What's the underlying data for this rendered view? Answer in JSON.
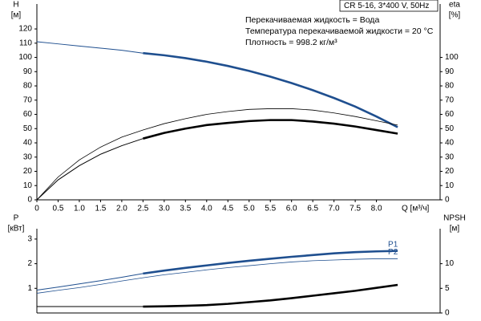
{
  "chart_data": [
    {
      "type": "line",
      "ylabel": "H",
      "yunit": "[м]",
      "y2label": "eta",
      "y2unit": "[%]",
      "xlabel": "Q [м³/ч]",
      "info_box": "CR 5-16, 3*400 V, 50Hz",
      "annotations": [
        "Перекачиваемая жидкость = Вода",
        "Температура перекачиваемой жидкости = 20 °C",
        "Плотность = 998.2 кг/м³"
      ],
      "bold_from": 2.5,
      "x": [
        0,
        0.5,
        1,
        1.5,
        2,
        2.5,
        3,
        3.5,
        4,
        4.5,
        5,
        5.5,
        6,
        6.5,
        7,
        7.5,
        8,
        8.5
      ],
      "xlim": [
        0,
        9.5
      ],
      "xticks": [
        0,
        0.5,
        {
          "value": 1,
          "label": "1.0"
        },
        1.5,
        {
          "value": 2,
          "label": "2.0"
        },
        2.5,
        {
          "value": 3,
          "label": "3.0"
        },
        3.5,
        {
          "value": 4,
          "label": "4.0"
        },
        4.5,
        {
          "value": 5,
          "label": "5.0"
        },
        5.5,
        {
          "value": 6,
          "label": "6.0"
        },
        6.5,
        {
          "value": 7,
          "label": "7.0"
        },
        7.5,
        {
          "value": 8,
          "label": "8.0"
        }
      ],
      "ylim": [
        0,
        137.5
      ],
      "yticks": [
        0,
        10,
        20,
        30,
        40,
        50,
        60,
        70,
        80,
        90,
        100,
        110,
        120
      ],
      "y2lim": [
        0,
        137.5
      ],
      "y2ticks": [
        0,
        10,
        20,
        30,
        40,
        50,
        60,
        70,
        80,
        90,
        100
      ],
      "series": [
        {
          "color": "#1f4f8f",
          "bold": true,
          "values": [
            111,
            109.5,
            108,
            106.5,
            105,
            103,
            101.5,
            99.5,
            97,
            94,
            90.5,
            86.5,
            82,
            77,
            71.5,
            65.5,
            58.5,
            51
          ]
        },
        {
          "color": "#000000",
          "bold": false,
          "axis": "y2",
          "values": [
            0,
            16,
            28,
            37,
            44,
            49,
            53.5,
            57,
            60,
            62,
            63.5,
            64,
            64,
            63,
            61,
            58.5,
            55.5,
            52.5
          ]
        },
        {
          "color": "#000000",
          "bold": true,
          "axis": "y2",
          "values": [
            0,
            14,
            24,
            32,
            38,
            43,
            47,
            50,
            52.5,
            54,
            55.3,
            56,
            56,
            55,
            53.5,
            51.5,
            49,
            46.5
          ]
        }
      ]
    },
    {
      "type": "line",
      "ylabel": "P",
      "yunit": "[кВт]",
      "y2label": "NPSH",
      "y2unit": "[м]",
      "bold_from": 2.5,
      "x": [
        0,
        0.5,
        1,
        1.5,
        2,
        2.5,
        3,
        3.5,
        4,
        4.5,
        5,
        5.5,
        6,
        6.5,
        7,
        7.5,
        8,
        8.5
      ],
      "xlim": [
        0,
        9.5
      ],
      "ylim": [
        0,
        3.42
      ],
      "yticks": [
        1,
        2,
        3
      ],
      "y2lim": [
        0,
        17.1
      ],
      "y2ticks": [
        0,
        5,
        10
      ],
      "series": [
        {
          "name": "P1",
          "color": "#1f4f8f",
          "bold": true,
          "values": [
            0.93,
            1.05,
            1.18,
            1.31,
            1.45,
            1.6,
            1.72,
            1.83,
            1.93,
            2.03,
            2.12,
            2.2,
            2.28,
            2.35,
            2.42,
            2.47,
            2.5,
            2.52
          ]
        },
        {
          "name": "P2",
          "color": "#1f4f8f",
          "bold": false,
          "values": [
            0.8,
            0.92,
            1.03,
            1.16,
            1.3,
            1.43,
            1.55,
            1.65,
            1.75,
            1.84,
            1.92,
            2.0,
            2.07,
            2.12,
            2.15,
            2.18,
            2.2,
            2.2
          ]
        },
        {
          "color": "#000000",
          "bold": true,
          "axis": "y2",
          "values": [
            1.3,
            1.3,
            1.3,
            1.3,
            1.3,
            1.3,
            1.35,
            1.45,
            1.6,
            1.85,
            2.2,
            2.55,
            3.0,
            3.5,
            4.0,
            4.5,
            5.1,
            5.7
          ]
        }
      ]
    }
  ]
}
